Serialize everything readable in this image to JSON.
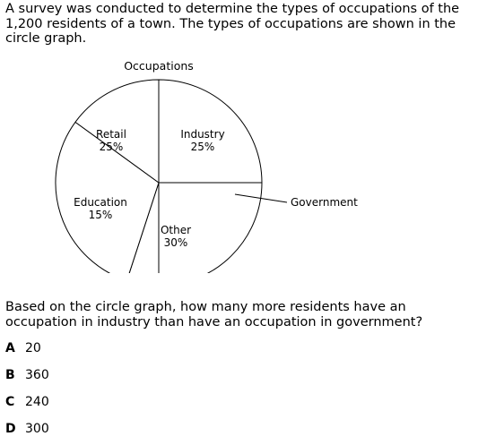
{
  "problem": {
    "intro": "A survey was conducted to determine the types of occupations of the 1,200 residents of a town. The types of occupations are shown in the circle graph.",
    "question": "Based on the circle graph, how many more residents have an occupation in industry than have an occupation in government?"
  },
  "choices": [
    {
      "letter": "A",
      "value": "20"
    },
    {
      "letter": "B",
      "value": "360"
    },
    {
      "letter": "C",
      "value": "240"
    },
    {
      "letter": "D",
      "value": "300"
    }
  ],
  "chart_data": {
    "type": "pie",
    "title": "Occupations",
    "slices": [
      {
        "name": "Retail",
        "label": "25%",
        "value": 25
      },
      {
        "name": "Industry",
        "label": "25%",
        "value": 25
      },
      {
        "name": "Government",
        "label": "",
        "value": 5
      },
      {
        "name": "Other",
        "label": "30%",
        "value": 30
      },
      {
        "name": "Education",
        "label": "15%",
        "value": 15
      }
    ],
    "colors": {
      "fill": "#ffffff",
      "stroke": "#000000"
    },
    "legend": "none"
  }
}
